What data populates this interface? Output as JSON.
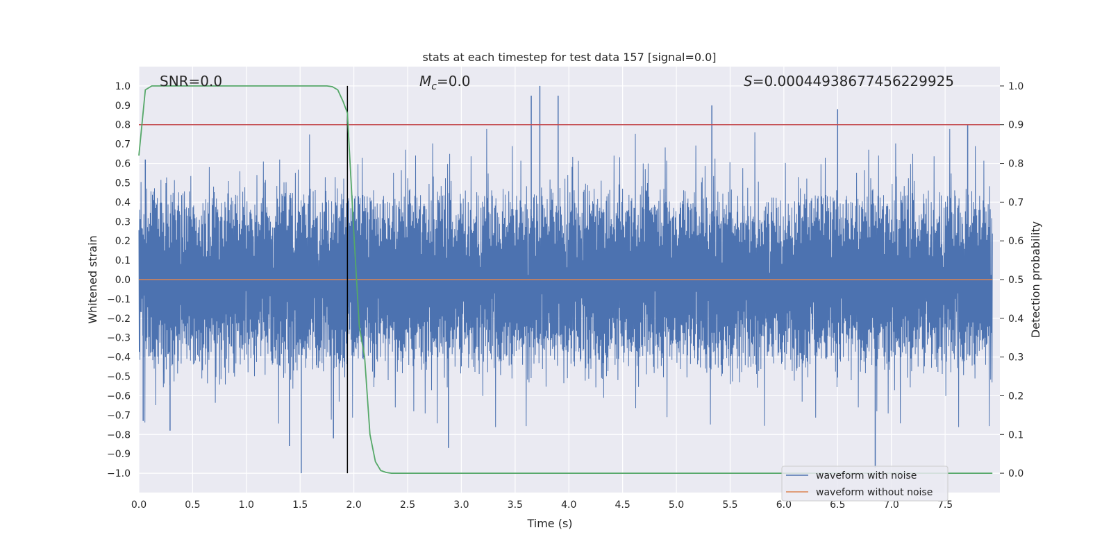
{
  "chart_data": {
    "type": "line",
    "title": "stats at each timestep for test data 157 [signal=0.0]",
    "xlabel": "Time (s)",
    "ylabel": "Whitened strain",
    "y2label": "Detection probability",
    "xlim": [
      0.0,
      8.0
    ],
    "ylim": [
      -1.1,
      1.1
    ],
    "y2lim": [
      -0.05,
      1.05
    ],
    "xticks": [
      "0.0",
      "0.5",
      "1.0",
      "1.5",
      "2.0",
      "2.5",
      "3.0",
      "3.5",
      "4.0",
      "4.5",
      "5.0",
      "5.5",
      "6.0",
      "6.5",
      "7.0",
      "7.5"
    ],
    "yticks": [
      "1.0",
      "0.9",
      "0.8",
      "0.7",
      "0.6",
      "0.5",
      "0.4",
      "0.3",
      "0.2",
      "0.1",
      "0.0",
      "−0.1",
      "−0.2",
      "−0.3",
      "−0.4",
      "−0.5",
      "−0.6",
      "−0.7",
      "−0.8",
      "−0.9",
      "−1.0"
    ],
    "y2ticks": [
      "1.0",
      "0.9",
      "0.8",
      "0.7",
      "0.6",
      "0.5",
      "0.4",
      "0.3",
      "0.2",
      "0.1",
      "0.0"
    ],
    "annotations": {
      "snr": "SNR=0.0",
      "mc_symbol": "M",
      "mc_sub": "c",
      "mc_value": "=0.0",
      "s_symbol": "S",
      "s_value": "=0.00044938677456229925"
    },
    "legend": {
      "position": "lower-right",
      "entries": [
        "waveform with noise",
        "waveform without noise"
      ]
    },
    "series": [
      {
        "name": "waveform with noise",
        "color": "#4c72b0",
        "axis": "left",
        "description": "dense whitened noise between about -0.5 and 0.5 with sparse spikes up to ±1.0",
        "noise_envelope": 0.42,
        "spikes": [
          [
            1.51,
            -1.0
          ],
          [
            3.73,
            1.0
          ],
          [
            3.65,
            0.95
          ],
          [
            3.9,
            0.95
          ],
          [
            6.85,
            -0.97
          ],
          [
            7.71,
            0.8
          ],
          [
            6.5,
            0.88
          ],
          [
            5.33,
            0.9
          ],
          [
            1.4,
            -0.86
          ],
          [
            2.88,
            -0.87
          ],
          [
            0.29,
            -0.78
          ],
          [
            1.81,
            -0.82
          ],
          [
            0.04,
            -0.73
          ],
          [
            0.06,
            0.62
          ]
        ]
      },
      {
        "name": "waveform without noise",
        "color": "#dd8452",
        "axis": "left",
        "x": [
          0.0,
          8.0
        ],
        "values": [
          0.0,
          0.0
        ]
      },
      {
        "name": "detection probability",
        "color": "#55a868",
        "axis": "right",
        "x": [
          0.0,
          0.06,
          0.12,
          0.2,
          0.3,
          0.5,
          1.0,
          1.5,
          1.75,
          1.8,
          1.85,
          1.9,
          1.94,
          2.0,
          2.05,
          2.1,
          2.15,
          2.2,
          2.25,
          2.3,
          2.35,
          2.5,
          3.0,
          5.0,
          7.94
        ],
        "values": [
          0.82,
          0.99,
          1.0,
          1.0,
          1.0,
          1.0,
          1.0,
          1.0,
          1.0,
          0.998,
          0.99,
          0.96,
          0.93,
          0.62,
          0.38,
          0.3,
          0.1,
          0.03,
          0.007,
          0.002,
          0.0,
          0.0,
          0.0,
          0.0,
          0.0
        ]
      }
    ],
    "reference_lines": [
      {
        "name": "threshold",
        "orientation": "horizontal",
        "axis": "right",
        "value": 0.9,
        "color": "#c44e52"
      },
      {
        "name": "detection time",
        "orientation": "vertical",
        "value": 1.94,
        "color": "#000000",
        "y_from": -1.0,
        "y_to": 1.0
      }
    ],
    "grid": true,
    "background": "#eaeaf2"
  }
}
